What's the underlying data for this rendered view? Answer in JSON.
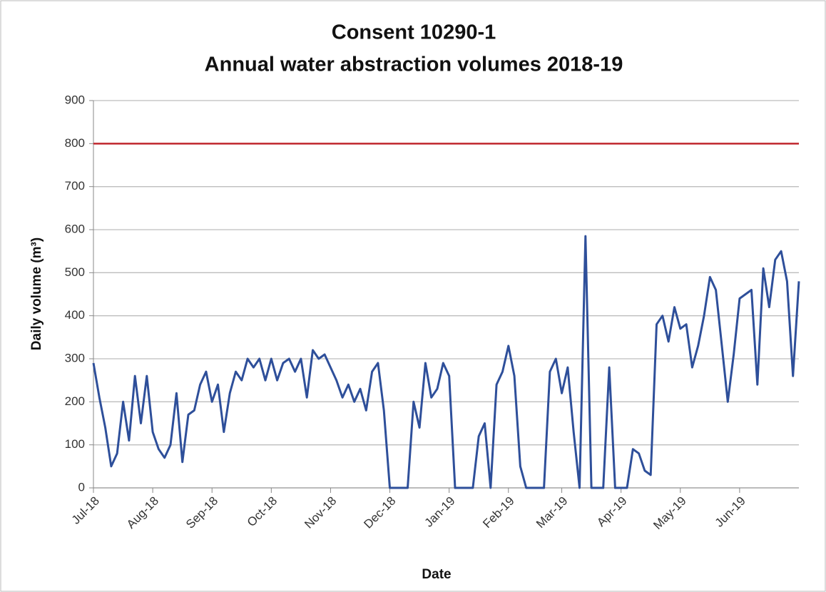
{
  "chart_data": {
    "type": "line",
    "title": [
      "Consent 10290-1",
      "Annual water abstraction volumes 2018-19"
    ],
    "y_label": "Daily volume (m³)",
    "x_label": "Date",
    "categories": [
      "Jul-18",
      null,
      null,
      null,
      null,
      null,
      null,
      null,
      null,
      null,
      "Aug-18",
      null,
      null,
      null,
      null,
      null,
      null,
      null,
      null,
      null,
      "Sep-18",
      null,
      null,
      null,
      null,
      null,
      null,
      null,
      null,
      null,
      "Oct-18",
      null,
      null,
      null,
      null,
      null,
      null,
      null,
      null,
      null,
      "Nov-18",
      null,
      null,
      null,
      null,
      null,
      null,
      null,
      null,
      null,
      "Dec-18",
      null,
      null,
      null,
      null,
      null,
      null,
      null,
      null,
      null,
      "Jan-19",
      null,
      null,
      null,
      null,
      null,
      null,
      null,
      null,
      null,
      "Feb-19",
      null,
      null,
      null,
      null,
      null,
      null,
      null,
      null,
      "Mar-19",
      null,
      null,
      null,
      null,
      null,
      null,
      null,
      null,
      null,
      "Apr-19",
      null,
      null,
      null,
      null,
      null,
      null,
      null,
      null,
      null,
      "May-19",
      null,
      null,
      null,
      null,
      null,
      null,
      null,
      null,
      null,
      "Jun-19",
      null,
      null,
      null,
      null,
      null,
      null,
      null,
      null,
      null,
      null
    ],
    "series": [
      {
        "color": "#2e4f9a",
        "values": [
          290,
          210,
          140,
          50,
          80,
          200,
          110,
          260,
          150,
          260,
          130,
          90,
          70,
          100,
          220,
          60,
          170,
          180,
          240,
          270,
          200,
          240,
          130,
          220,
          270,
          250,
          300,
          280,
          300,
          250,
          300,
          250,
          290,
          300,
          270,
          300,
          210,
          320,
          300,
          310,
          280,
          250,
          210,
          240,
          200,
          230,
          180,
          270,
          290,
          180,
          0,
          0,
          0,
          0,
          200,
          140,
          290,
          210,
          230,
          290,
          260,
          0,
          0,
          0,
          0,
          120,
          150,
          0,
          240,
          270,
          330,
          260,
          50,
          0,
          0,
          0,
          0,
          270,
          300,
          220,
          280,
          130,
          0,
          585,
          0,
          0,
          0,
          280,
          0,
          0,
          0,
          90,
          80,
          40,
          30,
          380,
          400,
          340,
          420,
          370,
          380,
          280,
          330,
          400,
          490,
          460,
          330,
          200,
          310,
          440,
          450,
          460,
          240,
          510,
          420,
          530,
          550,
          480,
          260,
          480
        ]
      }
    ],
    "limit": {
      "value": 800,
      "color": "#c0262d"
    },
    "ylim": [
      0,
      900
    ],
    "yticks": [
      0,
      100,
      200,
      300,
      400,
      500,
      600,
      700,
      800,
      900
    ],
    "grid": true
  }
}
